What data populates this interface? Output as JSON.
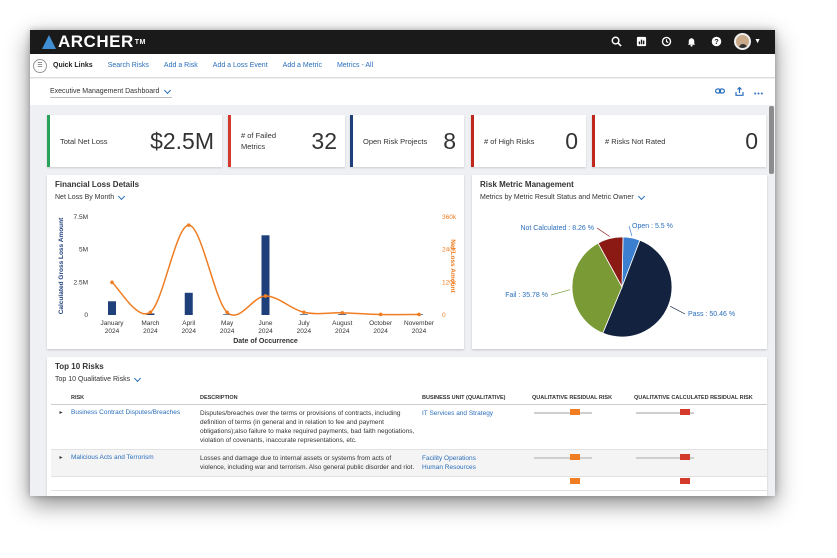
{
  "app": {
    "logo": "ARCHER",
    "trademark": "TM"
  },
  "topbar_icons": [
    "search-icon",
    "reports-icon",
    "history-icon",
    "bell-icon",
    "help-icon",
    "avatar"
  ],
  "quick_links": {
    "title": "Quick Links",
    "items": [
      "Search Risks",
      "Add a Risk",
      "Add a Loss Event",
      "Add a Metric",
      "Metrics - All"
    ]
  },
  "dashboard": {
    "selected": "Executive Management Dashboard",
    "icons": [
      "link-icon",
      "share-icon",
      "more-icon"
    ]
  },
  "kpis": [
    {
      "label": "Total Net Loss",
      "value": "$2.5M",
      "color": "#2aa35a"
    },
    {
      "label": "# of Failed Metrics",
      "value": "32",
      "color": "#d33a2c"
    },
    {
      "label": "Open Risk Projects",
      "value": "8",
      "color": "#1f3f7a"
    },
    {
      "label": "# of High Risks",
      "value": "0",
      "color": "#c0281e"
    },
    {
      "label": "# Risks Not Rated",
      "value": "0",
      "color": "#c0281e"
    }
  ],
  "financial": {
    "title": "Financial Loss Details",
    "filter": "Net Loss By Month",
    "chart_data": {
      "type": "bar+line",
      "categories": [
        "January 2024",
        "March 2024",
        "April 2024",
        "May 2024",
        "June 2024",
        "July 2024",
        "August 2024",
        "October 2024",
        "November 2024"
      ],
      "xlabel": "Date of Occurrence",
      "ylabel": "Calculated Gross Loss Amount",
      "y2label": "Net Loss Amount",
      "ylim": [
        0,
        7500000
      ],
      "yticks": [
        "0",
        "2.5M",
        "5M",
        "7.5M"
      ],
      "y2lim": [
        0,
        360000
      ],
      "y2ticks": [
        "0",
        "120k",
        "240k",
        "360k"
      ],
      "bars": [
        1050000,
        120000,
        1700000,
        50000,
        6100000,
        50000,
        60000,
        50000,
        50000
      ],
      "line": [
        120000,
        10000,
        330000,
        10000,
        70000,
        10000,
        8000,
        2000,
        2000
      ],
      "bar_color": "#1f3f7a",
      "line_color": "#f07d22"
    }
  },
  "riskmetric": {
    "title": "Risk Metric Management",
    "filter": "Metrics by Metric Result Status and Metric Owner",
    "chart_data": {
      "type": "pie",
      "slices": [
        {
          "label": "Open : 5.5 %",
          "value": 5.5,
          "color": "#3a7fd0"
        },
        {
          "label": "Pass : 50.46 %",
          "value": 50.46,
          "color": "#12223f"
        },
        {
          "label": "Fail : 35.78 %",
          "value": 35.78,
          "color": "#7a9a35"
        },
        {
          "label": "Not Calculated : 8.26 %",
          "value": 8.26,
          "color": "#8b1a14"
        }
      ]
    }
  },
  "top10": {
    "title": "Top 10 Risks",
    "filter": "Top 10 Qualitative Risks",
    "columns": [
      "RISK",
      "DESCRIPTION",
      "BUSINESS UNIT (QUALITATIVE)",
      "QUALITATIVE RESIDUAL RISK",
      "QUALITATIVE CALCULATED RESIDUAL RISK"
    ],
    "rows": [
      {
        "expander": "▸",
        "risk": "Business Contract Disputes/Breaches",
        "description": "Disputes/breaches over the terms or provisions of contracts, including definition of terms (in general and in relation to fee and payment obligations);also failure to make required payments, bad faith negotiations, violation of covenants, inaccurate representations, etc.",
        "units": [
          "IT Services and Strategy"
        ]
      },
      {
        "expander": "▸",
        "risk": "Malicious Acts and Terrorism",
        "description": "Losses and damage due to internal assets or systems from acts of violence, including war and terrorism. Also general public disorder and riot.",
        "units": [
          "Facility Operations",
          "Human Resources"
        ]
      }
    ],
    "marker_colors": {
      "orange": "#f07d22",
      "red": "#d33a2c"
    }
  }
}
